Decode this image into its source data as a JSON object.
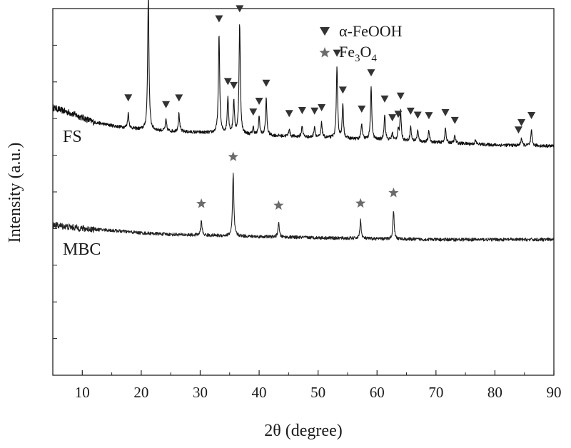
{
  "chart_data": {
    "type": "line",
    "title": "",
    "xlabel": "2θ (degree)",
    "ylabel": "Intensity (a.u.)",
    "xlim": [
      5,
      90
    ],
    "xticks": [
      10,
      20,
      30,
      40,
      50,
      60,
      70,
      80,
      90
    ],
    "ylim": [
      0,
      100
    ],
    "y_ticks_labeled": false,
    "grid": false,
    "legend_position": "top-center",
    "legend": [
      {
        "marker": "triangle-down",
        "text": "α-FeOOH",
        "color": "#333333"
      },
      {
        "marker": "star",
        "text_main": "Fe",
        "sub1": "3",
        "text_mid": "O",
        "sub2": "4",
        "color": "#6b6b6b"
      }
    ],
    "series": [
      {
        "name": "FS",
        "color": "#111111",
        "baseline": [
          [
            5,
            73
          ],
          [
            8,
            71.5
          ],
          [
            12,
            69
          ],
          [
            16,
            67.8
          ],
          [
            20,
            67
          ],
          [
            25,
            66.5
          ],
          [
            30,
            66.2
          ],
          [
            40,
            65.5
          ],
          [
            50,
            64.8
          ],
          [
            60,
            64.2
          ],
          [
            70,
            63.5
          ],
          [
            80,
            62.8
          ],
          [
            90,
            62.5
          ]
        ],
        "peaks": [
          {
            "x": 17.8,
            "h": 4
          },
          {
            "x": 21.2,
            "h": 37
          },
          {
            "x": 24.2,
            "h": 3
          },
          {
            "x": 26.4,
            "h": 5
          },
          {
            "x": 33.2,
            "h": 27
          },
          {
            "x": 34.7,
            "h": 10
          },
          {
            "x": 35.7,
            "h": 9
          },
          {
            "x": 36.7,
            "h": 30
          },
          {
            "x": 39.0,
            "h": 2
          },
          {
            "x": 40.0,
            "h": 5
          },
          {
            "x": 41.2,
            "h": 10
          },
          {
            "x": 45.1,
            "h": 2
          },
          {
            "x": 47.3,
            "h": 3
          },
          {
            "x": 49.4,
            "h": 3
          },
          {
            "x": 50.6,
            "h": 4
          },
          {
            "x": 53.2,
            "h": 19
          },
          {
            "x": 54.2,
            "h": 9
          },
          {
            "x": 57.4,
            "h": 4
          },
          {
            "x": 59.0,
            "h": 14
          },
          {
            "x": 61.3,
            "h": 7
          },
          {
            "x": 62.6,
            "h": 2
          },
          {
            "x": 63.6,
            "h": 3
          },
          {
            "x": 64.0,
            "h": 8
          },
          {
            "x": 65.7,
            "h": 4
          },
          {
            "x": 66.9,
            "h": 3
          },
          {
            "x": 68.8,
            "h": 3
          },
          {
            "x": 71.6,
            "h": 4
          },
          {
            "x": 73.2,
            "h": 2
          },
          {
            "x": 76.7,
            "h": 1
          },
          {
            "x": 84.5,
            "h": 2
          },
          {
            "x": 86.2,
            "h": 4
          }
        ],
        "marker": "triangle-down",
        "marker_x": [
          17.8,
          21.2,
          24.2,
          26.4,
          33.2,
          34.7,
          35.7,
          36.7,
          39.0,
          40.0,
          41.2,
          45.1,
          47.3,
          49.4,
          50.6,
          53.2,
          54.2,
          57.4,
          59.0,
          61.3,
          62.6,
          63.6,
          64.0,
          65.7,
          66.9,
          68.8,
          71.6,
          73.2,
          84.0,
          84.5,
          86.2
        ]
      },
      {
        "name": "MBC",
        "color": "#222222",
        "baseline": [
          [
            5,
            41
          ],
          [
            10,
            40
          ],
          [
            15,
            39.5
          ],
          [
            20,
            38.8
          ],
          [
            25,
            38.4
          ],
          [
            30,
            38.2
          ],
          [
            40,
            37.8
          ],
          [
            50,
            37.5
          ],
          [
            60,
            37.2
          ],
          [
            70,
            37.0
          ],
          [
            80,
            37.0
          ],
          [
            90,
            37.0
          ]
        ],
        "peaks": [
          {
            "x": 30.2,
            "h": 4
          },
          {
            "x": 35.6,
            "h": 17
          },
          {
            "x": 43.3,
            "h": 4
          },
          {
            "x": 57.2,
            "h": 5
          },
          {
            "x": 62.8,
            "h": 8
          }
        ],
        "marker": "star",
        "marker_x": [
          30.2,
          35.6,
          43.3,
          57.2,
          62.8
        ]
      }
    ],
    "series_labels": [
      {
        "text": "FS",
        "series": 0
      },
      {
        "text": "MBC",
        "series": 1
      }
    ]
  }
}
